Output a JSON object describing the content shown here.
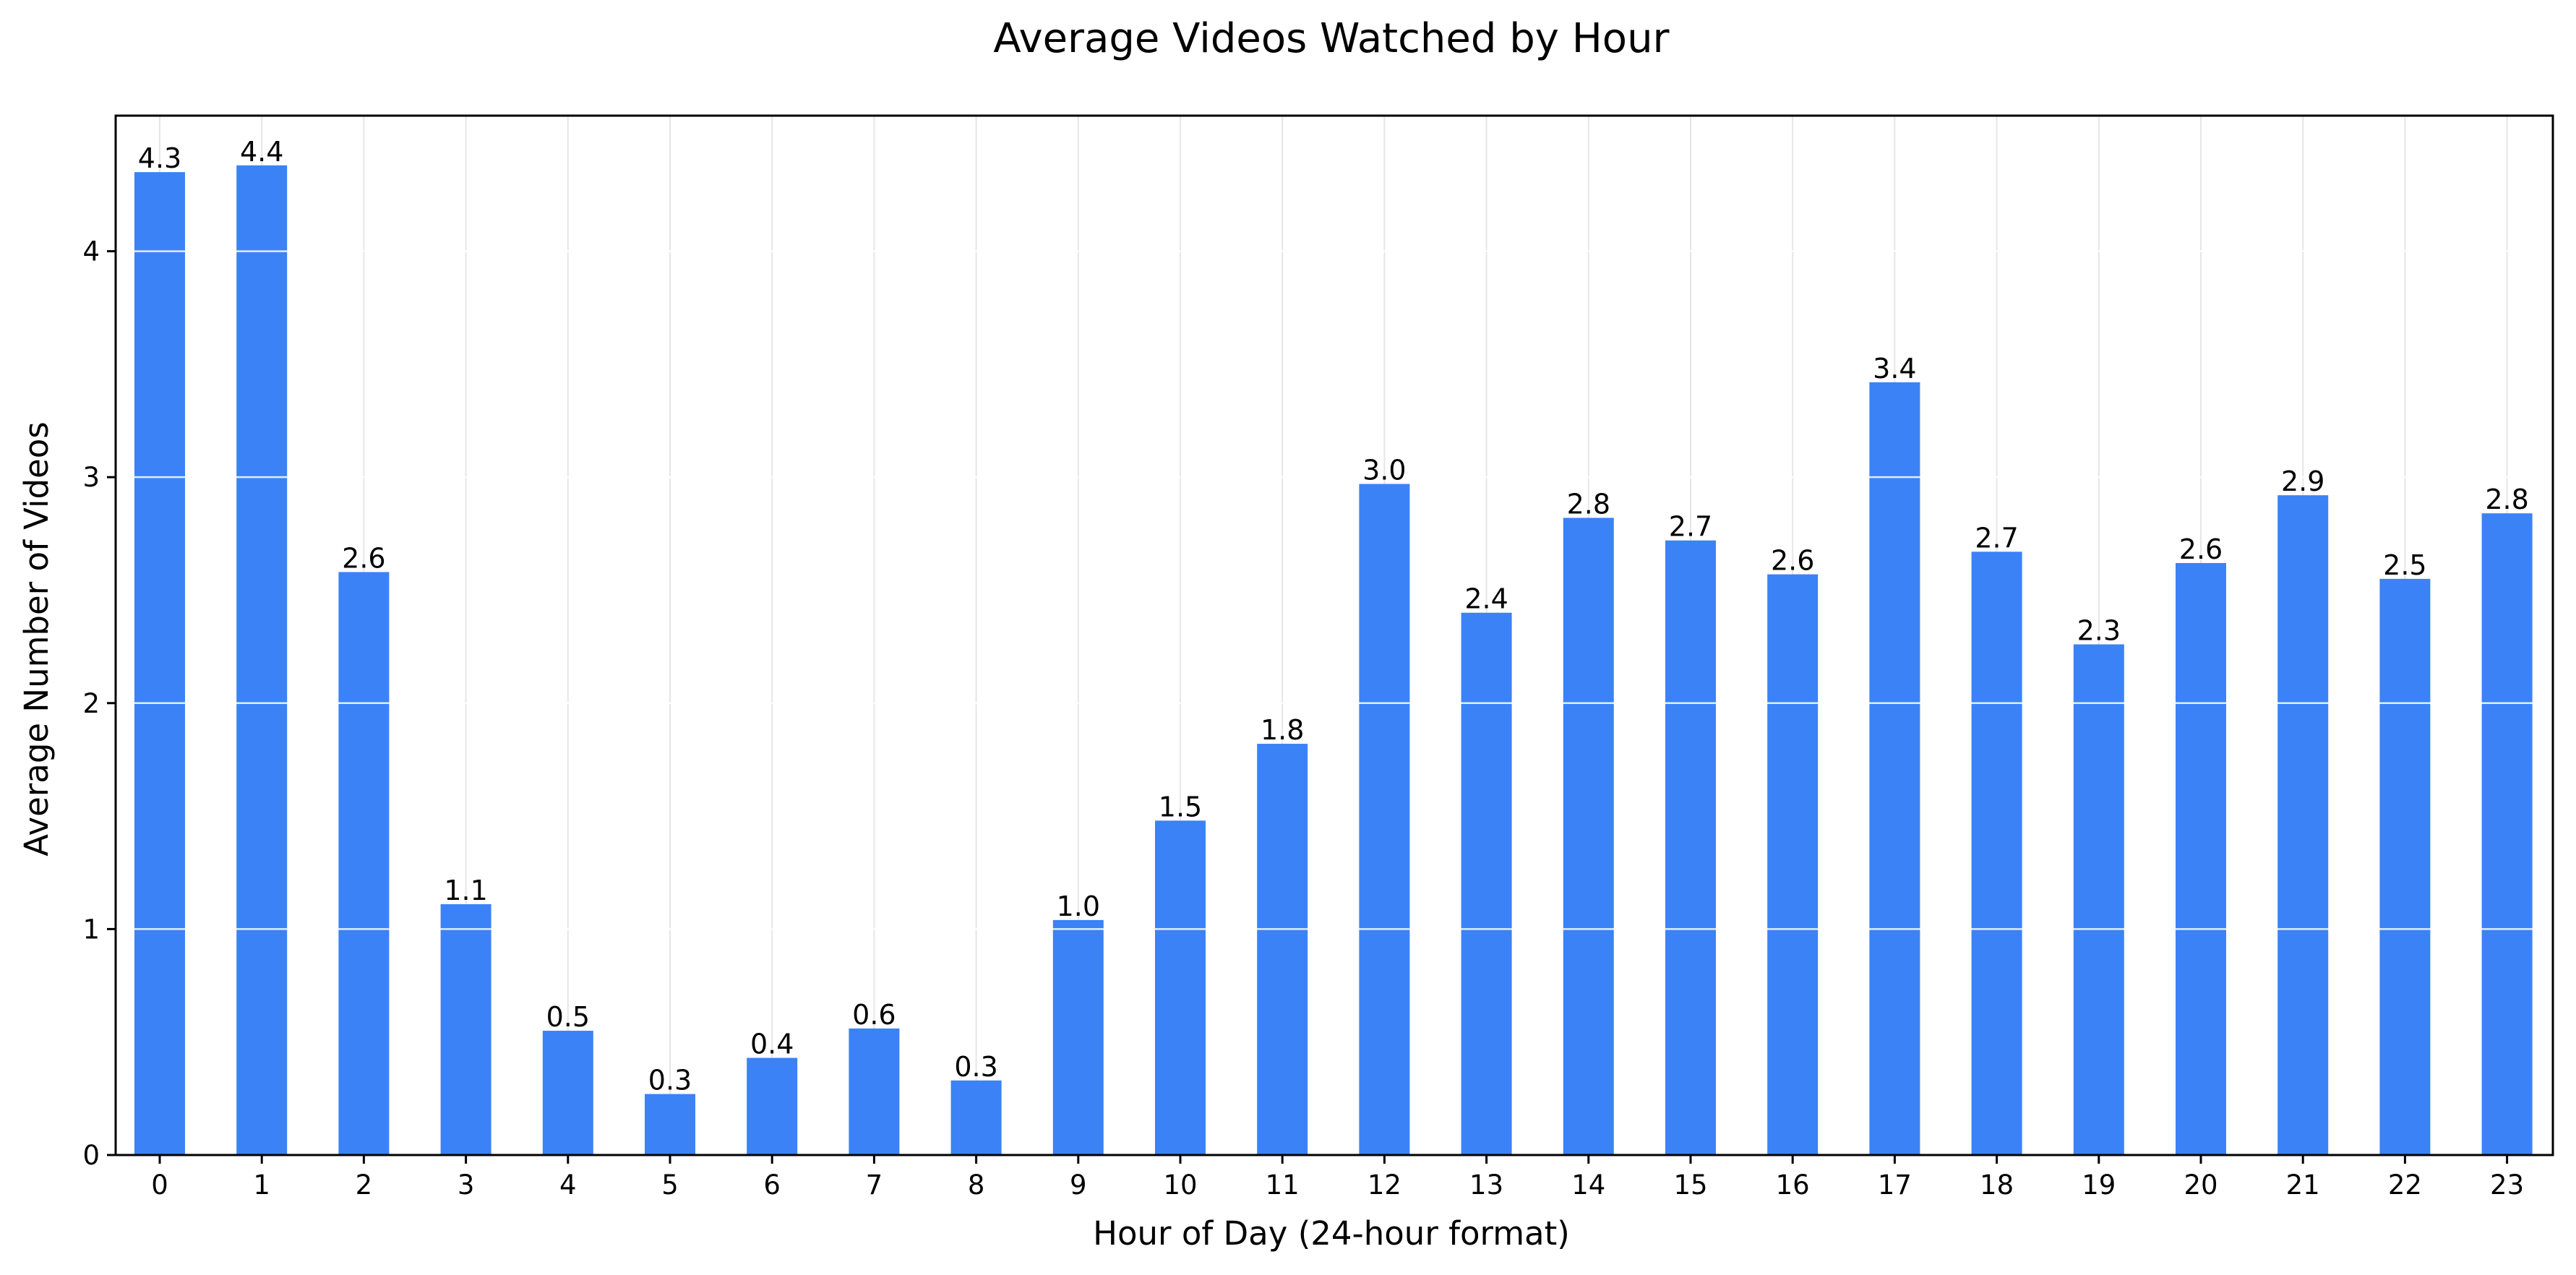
{
  "chart_data": {
    "type": "bar",
    "title": "Average Videos Watched by Hour",
    "xlabel": "Hour of Day (24-hour format)",
    "ylabel": "Average Number of Videos",
    "categories": [
      "0",
      "1",
      "2",
      "3",
      "4",
      "5",
      "6",
      "7",
      "8",
      "9",
      "10",
      "11",
      "12",
      "13",
      "14",
      "15",
      "16",
      "17",
      "18",
      "19",
      "20",
      "21",
      "22",
      "23"
    ],
    "values": [
      4.35,
      4.38,
      2.58,
      1.11,
      0.55,
      0.27,
      0.43,
      0.56,
      0.33,
      1.04,
      1.48,
      1.82,
      2.97,
      2.4,
      2.82,
      2.72,
      2.57,
      3.42,
      2.67,
      2.26,
      2.62,
      2.92,
      2.55,
      2.84
    ],
    "data_labels": [
      "4.3",
      "4.4",
      "2.6",
      "1.1",
      "0.5",
      "0.3",
      "0.4",
      "0.6",
      "0.3",
      "1.0",
      "1.5",
      "1.8",
      "3.0",
      "2.4",
      "2.8",
      "2.7",
      "2.6",
      "3.4",
      "2.7",
      "2.3",
      "2.6",
      "2.9",
      "2.5",
      "2.8"
    ],
    "yticks": [
      0,
      1,
      2,
      3,
      4
    ],
    "ylim": [
      0,
      4.6
    ],
    "grid": "both, light gray; horizontal grid lines visible over bars",
    "legend": "none",
    "colors": {
      "bar": "#3b82f6",
      "grid": "#e6e6e6",
      "axis": "#000000"
    }
  }
}
